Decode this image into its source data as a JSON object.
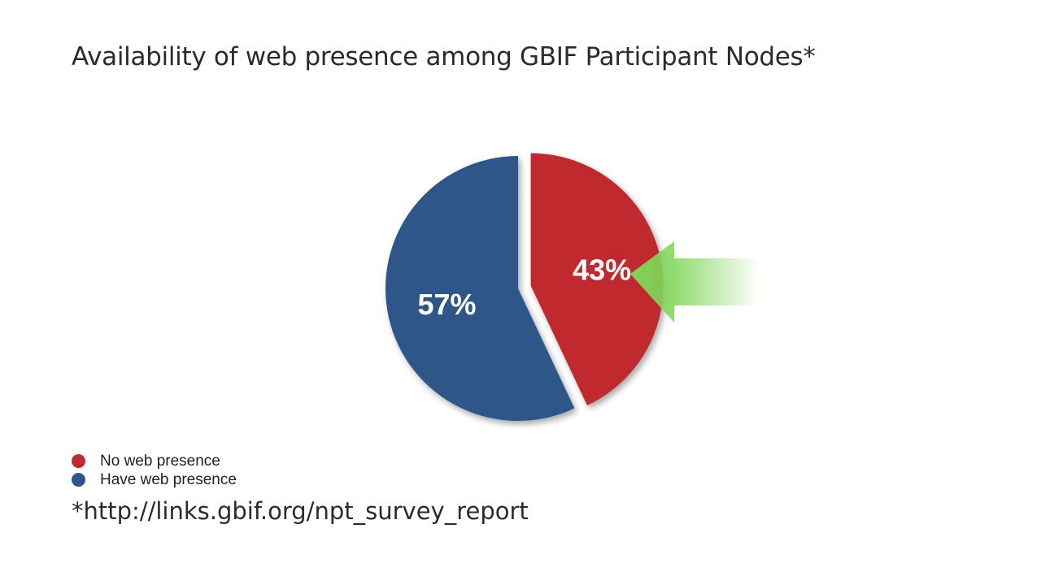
{
  "title": "Availability of web presence among GBIF Participant Nodes*",
  "footnote": "*http://links.gbif.org/npt_survey_report",
  "chart_data": {
    "type": "pie",
    "title": "Availability of web presence among GBIF Participant Nodes*",
    "slices": [
      {
        "name": "No web presence",
        "value": 43,
        "label": "43%",
        "color": "#c0292f",
        "exploded": true,
        "highlighted": true
      },
      {
        "name": "Have web presence",
        "value": 57,
        "label": "57%",
        "color": "#2f5689",
        "exploded": false,
        "highlighted": false
      }
    ],
    "legend_position": "bottom-left",
    "highlight_arrow_color": "#7fd65a"
  }
}
